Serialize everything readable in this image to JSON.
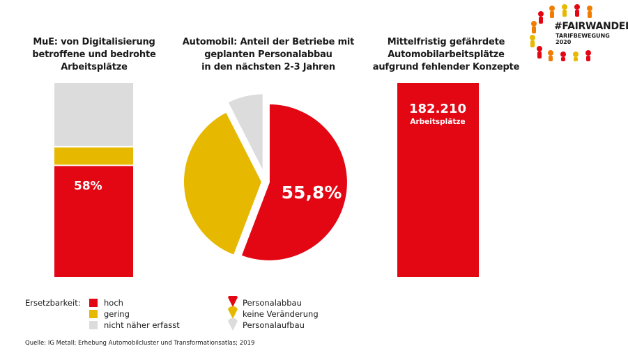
{
  "logo": {
    "hashtag": "#FAIRWANDEL",
    "subtitle": "TARIFBEWEGUNG 2020"
  },
  "chart_data": [
    {
      "type": "bar",
      "stacked": true,
      "title": "MuE: von Digitalisierung betroffene und bedrohte Arbeitsplätze",
      "title_lines": [
        "MuE: von Digitalisierung",
        "betroffene und bedrohte",
        "Arbeitsplätze"
      ],
      "segments": [
        {
          "category": "hoch",
          "value": 58,
          "color": "#e30613",
          "label": "58%"
        },
        {
          "category": "gering",
          "value": 9,
          "color": "#e6b800"
        },
        {
          "category": "nicht näher erfasst",
          "value": 33,
          "color": "#dcdcdc"
        }
      ]
    },
    {
      "type": "pie",
      "title": "Automobil: Anteil der Betriebe mit geplanten Personalabbau in den nächsten 2-3 Jahren",
      "title_lines": [
        "Automobil: Anteil der Betriebe mit",
        "geplanten Personalabbau",
        "in den nächsten 2-3 Jahren"
      ],
      "slices": [
        {
          "name": "Personalabbau",
          "value": 55.8,
          "color": "#e30613",
          "label": "55,8%"
        },
        {
          "name": "keine Veränderung",
          "value": 36.7,
          "color": "#e6b800"
        },
        {
          "name": "Personalaufbau",
          "value": 7.5,
          "color": "#dcdcdc"
        }
      ]
    },
    {
      "type": "bar",
      "title": "Mittelfristig gefährdete Automobilarbeitsplätze aufgrund fehlender Konzepte",
      "title_lines": [
        "Mittelfristig gefährdete",
        "Automobilarbeitsplätze",
        "aufgrund fehlender Konzepte"
      ],
      "value": 182210,
      "value_label": "182.210",
      "unit_label": "Arbeitsplätze",
      "color": "#e30613"
    }
  ],
  "legend": {
    "heading": "Ersetzbarkeit:",
    "bar_items": [
      {
        "label": "hoch",
        "color": "#e30613"
      },
      {
        "label": "gering",
        "color": "#e6b800"
      },
      {
        "label": "nicht näher erfasst",
        "color": "#dcdcdc"
      }
    ],
    "pie_items": [
      {
        "label": "Personalabbau",
        "color": "#e30613"
      },
      {
        "label": "keine Veränderung",
        "color": "#e6b800"
      },
      {
        "label": "Personalaufbau",
        "color": "#dcdcdc"
      }
    ]
  },
  "source": "Quelle: IG Metall; Erhebung Automobilcluster und Transformationsatlas; 2019"
}
